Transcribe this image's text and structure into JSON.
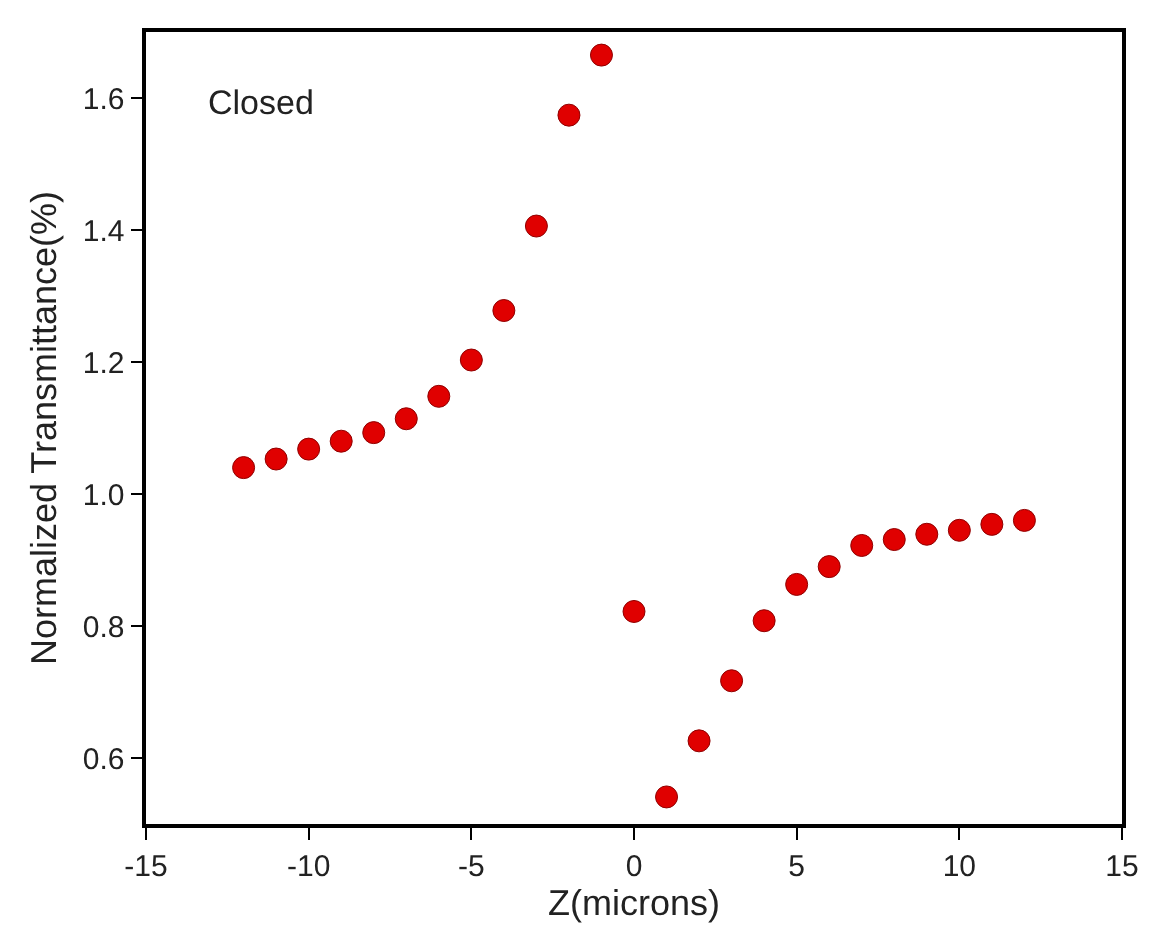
{
  "chart_data": {
    "type": "scatter",
    "xlabel": "Z(microns)",
    "ylabel": "Normalized Transmittance(%)",
    "annotations": [
      "Closed"
    ],
    "x": [
      -12,
      -11,
      -10,
      -9,
      -8,
      -7,
      -6,
      -5,
      -4,
      -3,
      -2,
      -1,
      0,
      1,
      2,
      3,
      4,
      5,
      6,
      7,
      8,
      9,
      10,
      11,
      12
    ],
    "series": [
      {
        "color": "#e00000",
        "values": [
          1.04,
          1.053,
          1.068,
          1.08,
          1.093,
          1.114,
          1.148,
          1.203,
          1.278,
          1.406,
          1.574,
          1.665,
          0.822,
          0.541,
          0.626,
          0.717,
          0.808,
          0.863,
          0.89,
          0.922,
          0.931,
          0.939,
          0.945,
          0.954,
          0.96
        ]
      }
    ],
    "xlim": [
      -15,
      15
    ],
    "xticks": [
      -15,
      -10,
      -5,
      0,
      5,
      10,
      15
    ],
    "ylim": [
      0.5,
      1.7
    ],
    "yticks": [
      0.6,
      0.8,
      {
        "value": 1,
        "label": "1.0"
      },
      1.2,
      1.4,
      1.6
    ],
    "marker": "circle"
  }
}
